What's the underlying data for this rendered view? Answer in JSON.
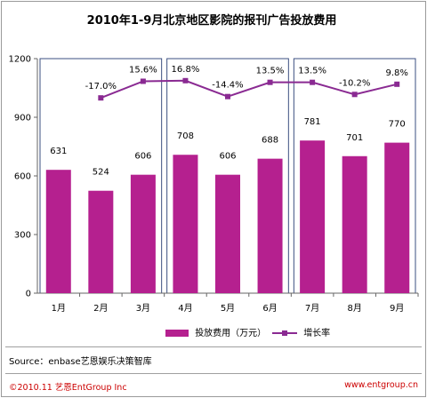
{
  "title": "2010年1-9月北京地区影院的报刊广告投放费用",
  "source": "Source：enbase艺恩娱乐决策智库",
  "copyright": "©2010.11 艺恩EntGroup Inc",
  "url": "www.entgroup.cn",
  "colors": {
    "bar": "#b5208f",
    "line": "#8a2a92",
    "panel_border": "#3b4f80",
    "axis": "#666666"
  },
  "chart_data": {
    "type": "bar",
    "categories": [
      "1月",
      "2月",
      "3月",
      "4月",
      "5月",
      "6月",
      "7月",
      "8月",
      "9月"
    ],
    "series": [
      {
        "name": "投放费用（万元）",
        "type": "bar",
        "values": [
          631,
          524,
          606,
          708,
          606,
          688,
          781,
          701,
          770
        ]
      },
      {
        "name": "增长率",
        "type": "line",
        "values": [
          null,
          -17.0,
          15.6,
          16.8,
          -14.4,
          13.5,
          13.5,
          -10.2,
          9.8
        ],
        "labels": [
          "",
          "-17.0%",
          "15.6%",
          "16.8%",
          "-14.4%",
          "13.5%",
          "13.5%",
          "-10.2%",
          "9.8%"
        ]
      }
    ],
    "yticks": [
      0,
      300,
      600,
      900,
      1200
    ],
    "ylim": [
      0,
      1200
    ],
    "groups": [
      [
        0,
        2
      ],
      [
        3,
        5
      ],
      [
        6,
        8
      ]
    ],
    "grid": false,
    "legend_position": "bottom"
  }
}
